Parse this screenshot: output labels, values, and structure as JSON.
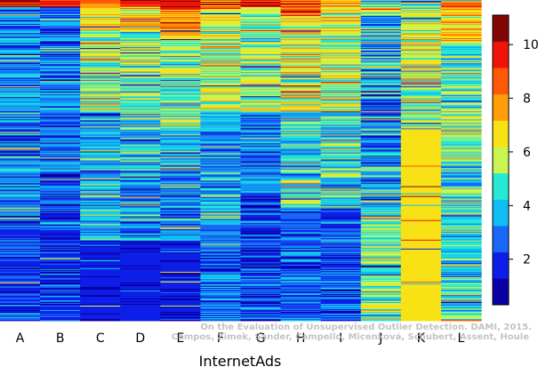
{
  "chart_data": {
    "type": "heatmap",
    "xlabel": "InternetAds",
    "columns": [
      "A",
      "B",
      "C",
      "D",
      "E",
      "F",
      "G",
      "H",
      "I",
      "J",
      "K",
      "L"
    ],
    "n_rows": 360,
    "colorbar": {
      "min": 0.3,
      "max": 11.1,
      "ticks": [
        2,
        4,
        6,
        8,
        10
      ],
      "colors": [
        "#0a00a3",
        "#0d1ee8",
        "#1868f5",
        "#0fbdf4",
        "#27e8d2",
        "#c9f552",
        "#f8e115",
        "#ff9d0a",
        "#ff5808",
        "#ee1408",
        "#820603"
      ]
    },
    "column_profiles": [
      {
        "name": "A",
        "blocks": [
          [
            0,
            0.02,
            9.5,
            1.0
          ],
          [
            0.02,
            0.33,
            3.2,
            1.0
          ],
          [
            0.33,
            0.7,
            3.0,
            1.2
          ],
          [
            0.7,
            1.0,
            2.2,
            0.8
          ]
        ]
      },
      {
        "name": "B",
        "blocks": [
          [
            0,
            0.02,
            9.0,
            0.8
          ],
          [
            0.02,
            0.35,
            2.8,
            1.2
          ],
          [
            0.35,
            0.7,
            2.6,
            1.2
          ],
          [
            0.7,
            1.0,
            2.0,
            0.8
          ]
        ]
      },
      {
        "name": "C",
        "blocks": [
          [
            0,
            0.02,
            8.0,
            1.0
          ],
          [
            0.02,
            0.1,
            6.8,
            1.2
          ],
          [
            0.1,
            0.35,
            5.5,
            1.2
          ],
          [
            0.35,
            0.75,
            3.8,
            1.2
          ],
          [
            0.75,
            1.0,
            1.5,
            0.2
          ]
        ]
      },
      {
        "name": "D",
        "blocks": [
          [
            0,
            0.02,
            9.5,
            0.8
          ],
          [
            0.02,
            0.1,
            7.0,
            1.2
          ],
          [
            0.1,
            0.35,
            5.2,
            1.2
          ],
          [
            0.35,
            0.75,
            3.8,
            1.2
          ],
          [
            0.75,
            1.0,
            1.5,
            0.2
          ]
        ]
      },
      {
        "name": "E",
        "blocks": [
          [
            0,
            0.03,
            9.8,
            0.5
          ],
          [
            0.03,
            0.12,
            7.5,
            1.0
          ],
          [
            0.12,
            0.4,
            5.0,
            1.2
          ],
          [
            0.4,
            0.75,
            3.5,
            1.2
          ],
          [
            0.75,
            1.0,
            1.6,
            0.4
          ]
        ]
      },
      {
        "name": "F",
        "blocks": [
          [
            0,
            0.03,
            8.5,
            1.0
          ],
          [
            0.03,
            0.35,
            5.8,
            1.2
          ],
          [
            0.35,
            0.7,
            3.6,
            1.2
          ],
          [
            0.7,
            1.0,
            2.8,
            1.0
          ]
        ]
      },
      {
        "name": "G",
        "blocks": [
          [
            0,
            0.02,
            10.0,
            0.8
          ],
          [
            0.02,
            0.35,
            5.5,
            1.2
          ],
          [
            0.35,
            0.6,
            3.0,
            1.2
          ],
          [
            0.6,
            1.0,
            2.2,
            1.0
          ]
        ]
      },
      {
        "name": "H",
        "blocks": [
          [
            0,
            0.05,
            9.0,
            1.0
          ],
          [
            0.05,
            0.35,
            6.0,
            1.3
          ],
          [
            0.35,
            0.65,
            4.5,
            1.3
          ],
          [
            0.65,
            1.0,
            2.6,
            1.0
          ]
        ]
      },
      {
        "name": "I",
        "blocks": [
          [
            0,
            0.04,
            7.5,
            1.0
          ],
          [
            0.04,
            0.35,
            5.8,
            1.2
          ],
          [
            0.35,
            0.65,
            4.5,
            1.3
          ],
          [
            0.65,
            1.0,
            2.5,
            1.0
          ]
        ]
      },
      {
        "name": "J",
        "blocks": [
          [
            0,
            0.05,
            6.0,
            1.5
          ],
          [
            0.05,
            0.35,
            3.5,
            1.6
          ],
          [
            0.35,
            0.65,
            3.6,
            1.5
          ],
          [
            0.65,
            1.0,
            5.0,
            1.2
          ]
        ]
      },
      {
        "name": "K",
        "blocks": [
          [
            0,
            0.06,
            6.5,
            2.5
          ],
          [
            0.06,
            0.4,
            5.8,
            1.3
          ],
          [
            0.4,
            1.0,
            6.4,
            0.1
          ]
        ]
      },
      {
        "name": "L",
        "blocks": [
          [
            0,
            0.03,
            8.0,
            0.8
          ],
          [
            0.03,
            0.13,
            6.8,
            1.2
          ],
          [
            0.13,
            0.5,
            5.0,
            1.2
          ],
          [
            0.5,
            1.0,
            4.4,
            1.2
          ]
        ]
      }
    ]
  },
  "credit": {
    "line1": "On the Evaluation of Unsupervised Outlier Detection. DAMI, 2015.",
    "line2": "Campos, Zimek, Sander, Campello, Micenková, Schubert, Assent, Houle"
  }
}
